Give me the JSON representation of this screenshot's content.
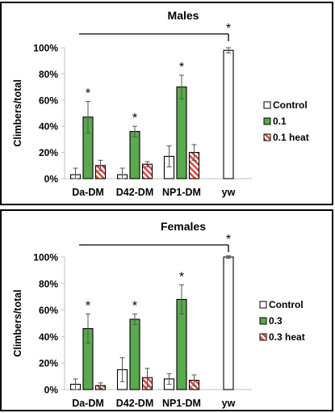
{
  "colors": {
    "control_fill": "#ffffff",
    "treatment_fill": "#5aa84f",
    "heat_stripe": "#d94a43",
    "axis": "#bfbfbf",
    "text": "#000000",
    "border": "#000000"
  },
  "chart_data": [
    {
      "type": "bar",
      "title": "Males",
      "ylabel": "Climbers/total",
      "xlabel": "",
      "categories": [
        "Da-DM",
        "D42-DM",
        "NP1-DM",
        "yw"
      ],
      "ylim": [
        0,
        100
      ],
      "yticks": [
        "0%",
        "20%",
        "40%",
        "60%",
        "80%",
        "100%"
      ],
      "legend_position": "right",
      "series": [
        {
          "name": "Control",
          "pattern": "solid-white",
          "values": [
            3,
            3,
            17,
            98
          ],
          "errors": [
            5,
            5,
            8,
            2
          ]
        },
        {
          "name": "0.1",
          "pattern": "solid-green",
          "values": [
            47,
            36,
            70,
            null
          ],
          "errors": [
            12,
            4,
            9,
            null
          ]
        },
        {
          "name": "0.1 heat",
          "pattern": "red-white-stripes",
          "values": [
            10,
            11,
            20,
            null
          ],
          "errors": [
            4,
            2,
            6,
            null
          ]
        }
      ],
      "significance": {
        "marker": "*",
        "bracket_label": "*",
        "bars": [
          "0.1:Da-DM",
          "0.1:D42-DM",
          "0.1:NP1-DM"
        ]
      }
    },
    {
      "type": "bar",
      "title": "Females",
      "ylabel": "Climbers/total",
      "xlabel": "",
      "categories": [
        "Da-DM",
        "D42-DM",
        "NP1-DM",
        "yw"
      ],
      "ylim": [
        0,
        100
      ],
      "yticks": [
        "0%",
        "20%",
        "40%",
        "60%",
        "80%",
        "100%"
      ],
      "legend_position": "right",
      "series": [
        {
          "name": "Control",
          "pattern": "solid-white",
          "values": [
            4,
            15,
            8,
            100
          ],
          "errors": [
            4,
            9,
            4,
            1
          ]
        },
        {
          "name": "0.3",
          "pattern": "solid-green",
          "values": [
            46,
            53,
            68,
            null
          ],
          "errors": [
            11,
            4,
            11,
            null
          ]
        },
        {
          "name": "0.3 heat",
          "pattern": "red-white-stripes",
          "values": [
            3,
            9,
            7,
            null
          ],
          "errors": [
            2,
            7,
            4,
            null
          ]
        }
      ],
      "significance": {
        "marker": "*",
        "bracket_label": "*",
        "bars": [
          "0.3:Da-DM",
          "0.3:D42-DM",
          "0.3:NP1-DM"
        ]
      }
    }
  ]
}
